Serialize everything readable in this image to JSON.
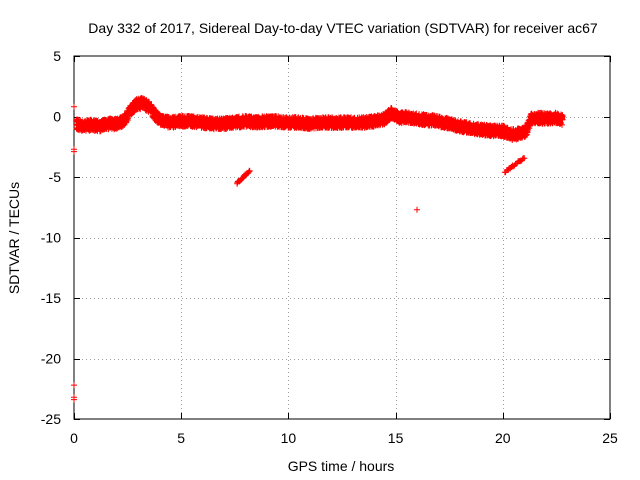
{
  "chart_data": {
    "type": "scatter",
    "title": "Day 332 of 2017, Sidereal Day-to-day VTEC variation (SDTVAR) for receiver ac67",
    "xlabel": "GPS time / hours",
    "ylabel": "SDTVAR / TECUs",
    "xlim": [
      0,
      25
    ],
    "ylim": [
      -25,
      5
    ],
    "xticks": [
      0,
      5,
      10,
      15,
      20,
      25
    ],
    "yticks": [
      -25,
      -20,
      -15,
      -10,
      -5,
      0,
      5
    ],
    "grid": true,
    "marker": "+",
    "series_color": "#ff0000",
    "trend": [
      [
        0.1,
        -0.6
      ],
      [
        0.4,
        -0.8
      ],
      [
        0.8,
        -0.7
      ],
      [
        1.2,
        -0.8
      ],
      [
        1.6,
        -0.6
      ],
      [
        2.0,
        -0.6
      ],
      [
        2.3,
        -0.4
      ],
      [
        2.6,
        0.4
      ],
      [
        2.9,
        1.0
      ],
      [
        3.2,
        1.1
      ],
      [
        3.5,
        0.8
      ],
      [
        3.8,
        0.1
      ],
      [
        4.1,
        -0.4
      ],
      [
        4.5,
        -0.5
      ],
      [
        5.0,
        -0.4
      ],
      [
        5.5,
        -0.4
      ],
      [
        6.0,
        -0.5
      ],
      [
        6.5,
        -0.6
      ],
      [
        7.0,
        -0.6
      ],
      [
        7.5,
        -0.5
      ],
      [
        8.0,
        -0.4
      ],
      [
        8.5,
        -0.5
      ],
      [
        9.0,
        -0.4
      ],
      [
        9.5,
        -0.4
      ],
      [
        10.0,
        -0.5
      ],
      [
        10.5,
        -0.5
      ],
      [
        11.0,
        -0.6
      ],
      [
        11.5,
        -0.5
      ],
      [
        12.0,
        -0.5
      ],
      [
        12.5,
        -0.5
      ],
      [
        13.0,
        -0.5
      ],
      [
        13.5,
        -0.5
      ],
      [
        14.0,
        -0.4
      ],
      [
        14.5,
        -0.2
      ],
      [
        14.8,
        0.3
      ],
      [
        15.2,
        -0.1
      ],
      [
        15.6,
        -0.1
      ],
      [
        16.0,
        -0.2
      ],
      [
        16.5,
        -0.3
      ],
      [
        17.0,
        -0.4
      ],
      [
        17.5,
        -0.6
      ],
      [
        18.0,
        -0.8
      ],
      [
        18.5,
        -1.0
      ],
      [
        19.0,
        -1.1
      ],
      [
        19.5,
        -1.2
      ],
      [
        20.0,
        -1.2
      ],
      [
        20.4,
        -1.5
      ],
      [
        20.8,
        -1.4
      ],
      [
        21.1,
        -1.2
      ],
      [
        21.3,
        -0.2
      ],
      [
        21.6,
        -0.1
      ],
      [
        22.0,
        -0.2
      ],
      [
        22.4,
        -0.1
      ],
      [
        22.8,
        -0.3
      ]
    ],
    "isolated_points": [
      [
        0.0,
        0.8
      ],
      [
        0.0,
        -2.7
      ],
      [
        0.0,
        -2.9
      ],
      [
        0.0,
        -22.2
      ],
      [
        0.0,
        -23.2
      ],
      [
        0.0,
        -23.4
      ],
      [
        16.0,
        -7.7
      ]
    ],
    "diagonal_segments": [
      {
        "from": [
          7.6,
          -5.5
        ],
        "to": [
          8.2,
          -4.5
        ]
      },
      {
        "from": [
          20.1,
          -4.6
        ],
        "to": [
          21.0,
          -3.4
        ]
      }
    ]
  }
}
